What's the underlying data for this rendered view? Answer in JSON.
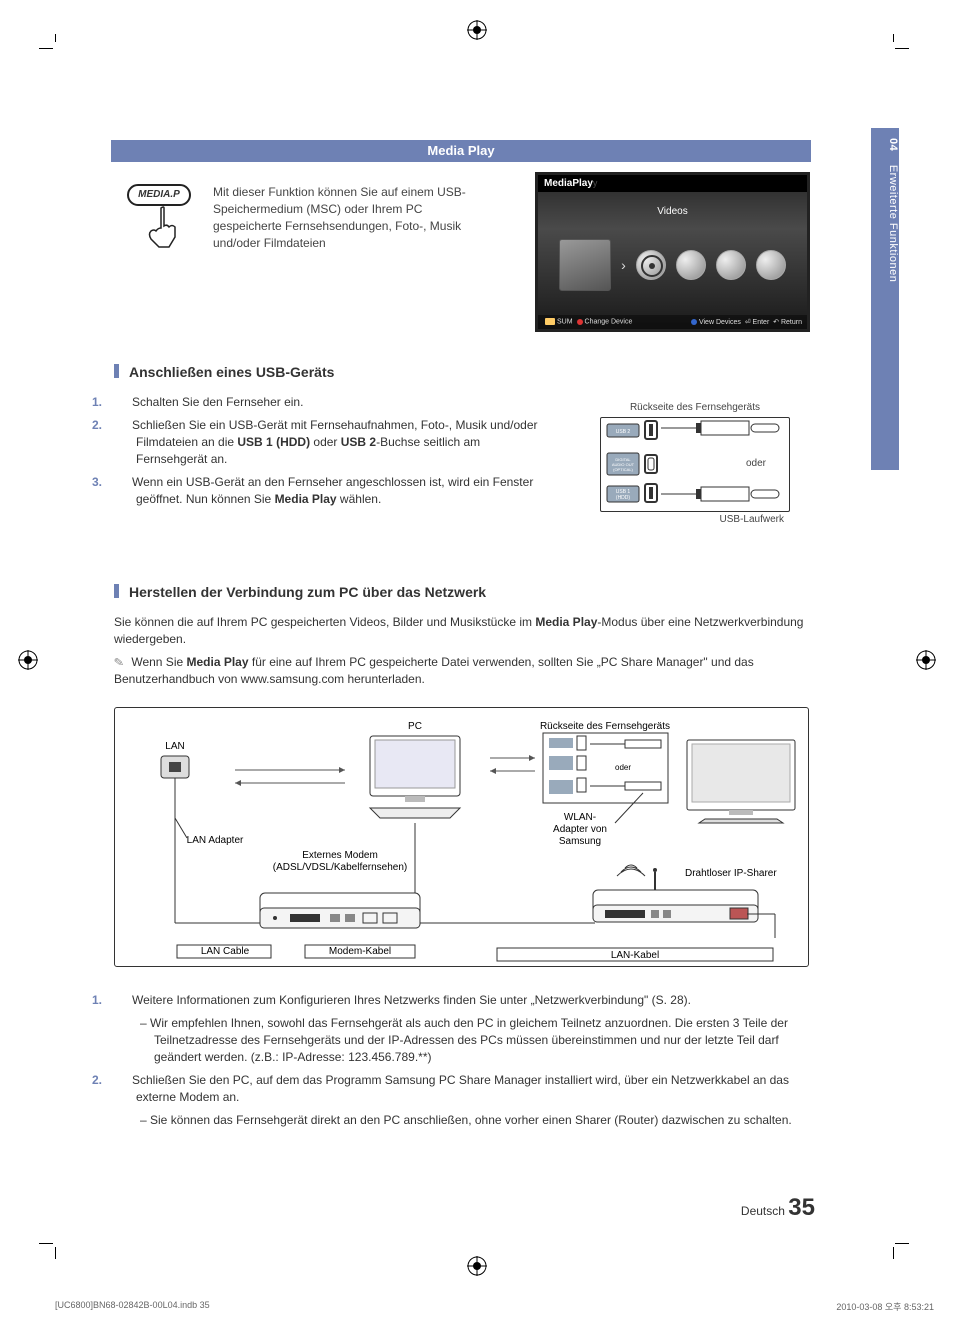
{
  "title_bar": "Media Play",
  "side_tab": {
    "num": "04",
    "label": "Erweiterte Funktionen"
  },
  "remote_button": "MEDIA.P",
  "intro": "Mit dieser Funktion können Sie auf einem USB-Speichermedium (MSC) oder Ihrem PC gespeicherte Fernsehsendungen, Foto-, Musik und/oder Filmdateien",
  "tv": {
    "brand_a": "MediaPlay",
    "brand_b": "y",
    "menu_label": "Videos",
    "footer_left_sum": "SUM",
    "footer_left": "Change Device",
    "footer_right_view": "View Devices",
    "footer_right_enter": "Enter",
    "footer_right_return": "Return"
  },
  "section_usb": "Anschließen eines USB-Geräts",
  "usb_steps": [
    "Schalten Sie den Fernseher ein.",
    "Schließen Sie ein USB-Gerät mit Fernsehaufnahmen, Foto-, Musik und/oder Filmdateien an die <b>USB 1 (HDD)</b> oder <b>USB 2</b>-Buchse seitlich am Fernsehgerät an.",
    "Wenn ein USB-Gerät an den Fernseher angeschlossen ist, wird ein Fenster geöffnet. Nun können Sie <b>Media Play</b> wählen."
  ],
  "back_panel_title": "Rückseite des Fernsehgeräts",
  "back_panel_ports": {
    "p1": "USB 2",
    "p2": "DIGITAL\nAUDIO OUT\n(OPTICAL)",
    "p3": "USB 1\n(HDD)"
  },
  "back_panel_or": "oder",
  "back_panel_drive": "USB-Laufwerk",
  "section_net": "Herstellen der Verbindung zum PC über das Netzwerk",
  "net_intro": "Sie können die auf Ihrem PC gespeicherten Videos, Bilder und Musikstücke im <b>Media Play</b>-Modus über eine Netzwerkverbindung wiedergeben.",
  "net_note": "Wenn Sie <b>Media Play</b> für eine auf Ihrem PC gespeicherte Datei verwenden, sollten Sie „PC Share Manager\" und das Benutzerhandbuch von www.samsung.com herunterladen.",
  "diagram": {
    "lan": "LAN",
    "lan_adapter": "LAN Adapter",
    "pc": "PC",
    "modem": "Externes Modem\n(ADSL/VDSL/Kabelfernsehen)",
    "lan_cable": "LAN Cable",
    "modem_cable": "Modem-Kabel",
    "back": "Rückseite des Fernsehgeräts",
    "oder": "oder",
    "wlan": "WLAN-\nAdapter von\nSamsung",
    "router": "Drahtloser IP-Sharer",
    "lan_kabel": "LAN-Kabel"
  },
  "net_steps": [
    {
      "n": "1.",
      "t": "Weitere Informationen zum Konfigurieren Ihres Netzwerks finden Sie unter „Netzwerkverbindung\" (S. 28).",
      "sub": [
        "Wir empfehlen Ihnen, sowohl das Fernsehgerät als auch den PC in gleichem Teilnetz anzuordnen. Die ersten 3 Teile der Teilnetzadresse des Fernsehgeräts und der IP-Adressen des PCs müssen übereinstimmen und nur der letzte Teil darf geändert werden. (z.B.: IP-Adresse: 123.456.789.**)"
      ]
    },
    {
      "n": "2.",
      "t": "Schließen Sie den PC, auf dem das Programm Samsung PC Share Manager installiert wird, über ein Netzwerkkabel an das externe Modem an.",
      "sub": [
        "Sie können das Fernsehgerät direkt an den PC anschließen, ohne vorher einen Sharer (Router) dazwischen zu schalten."
      ]
    }
  ],
  "page_lang": "Deutsch",
  "page_num": "35",
  "footer_left": "[UC6800]BN68-02842B-00L04.indb   35",
  "footer_right": "2010-03-08   오후 8:53:21",
  "colors": {
    "accent": "#6e81b4"
  }
}
